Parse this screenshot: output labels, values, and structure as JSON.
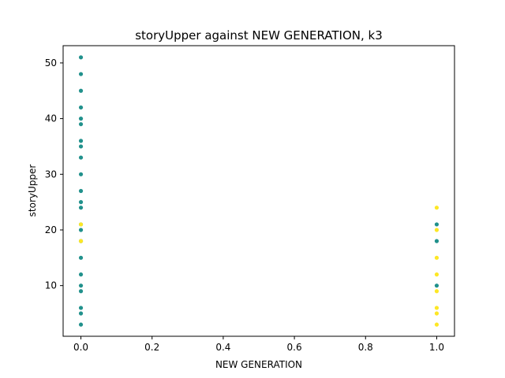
{
  "chart_data": {
    "type": "scatter",
    "title": "storyUpper against NEW GENERATION, k3",
    "xlabel": "NEW GENERATION",
    "ylabel": "storyUpper",
    "xlim": [
      -0.05,
      1.05
    ],
    "ylim": [
      0.9,
      53.1
    ],
    "xticks": [
      0.0,
      0.2,
      0.4,
      0.6,
      0.8,
      1.0
    ],
    "xtick_labels": [
      "0.0",
      "0.2",
      "0.4",
      "0.6",
      "0.8",
      "1.0"
    ],
    "yticks": [
      10,
      20,
      30,
      40,
      50
    ],
    "ytick_labels": [
      "10",
      "20",
      "30",
      "40",
      "50"
    ],
    "grid": false,
    "series": [
      {
        "color": "#21918c",
        "points": [
          [
            0,
            51
          ],
          [
            0,
            48
          ],
          [
            0,
            45
          ],
          [
            0,
            42
          ],
          [
            0,
            40
          ],
          [
            0,
            39
          ],
          [
            0,
            36
          ],
          [
            0,
            35
          ],
          [
            0,
            33
          ],
          [
            0,
            30
          ],
          [
            0,
            27
          ],
          [
            0,
            25
          ],
          [
            0,
            24
          ],
          [
            0,
            21
          ],
          [
            0,
            20
          ],
          [
            0,
            18
          ],
          [
            0,
            15
          ],
          [
            0,
            12
          ],
          [
            0,
            10
          ],
          [
            0,
            9
          ],
          [
            0,
            6
          ],
          [
            0,
            5
          ],
          [
            0,
            3
          ],
          [
            1,
            21
          ],
          [
            1,
            18
          ],
          [
            1,
            10
          ]
        ]
      },
      {
        "color": "#fde725",
        "points": [
          [
            0,
            21
          ],
          [
            0,
            18
          ],
          [
            1,
            24
          ],
          [
            1,
            20
          ],
          [
            1,
            15
          ],
          [
            1,
            12
          ],
          [
            1,
            9
          ],
          [
            1,
            6
          ],
          [
            1,
            5
          ],
          [
            1,
            3
          ]
        ]
      }
    ]
  }
}
